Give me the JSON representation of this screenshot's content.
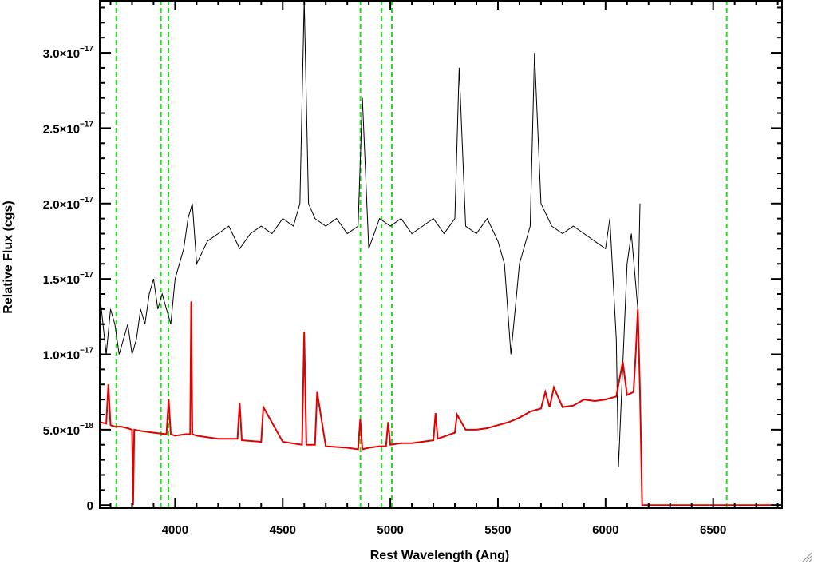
{
  "chart_data": {
    "type": "line",
    "xlabel": "Rest Wavelength (Ang)",
    "ylabel": "Relative Flux (cgs)",
    "xlim": [
      3650,
      6820
    ],
    "ylim": [
      -2e-19,
      3.35e-17
    ],
    "grid": false,
    "x_ticks": [
      {
        "value": 4000,
        "label": "4000"
      },
      {
        "value": 4500,
        "label": "4500"
      },
      {
        "value": 5000,
        "label": "5000"
      },
      {
        "value": 5500,
        "label": "5500"
      },
      {
        "value": 6000,
        "label": "6000"
      },
      {
        "value": 6500,
        "label": "6500"
      }
    ],
    "y_ticks": [
      {
        "value": 0,
        "mantissa": "0",
        "exponent": ""
      },
      {
        "value": 5e-18,
        "mantissa": "5.0×10",
        "exponent": "−18"
      },
      {
        "value": 1e-17,
        "mantissa": "1.0×10",
        "exponent": "−17"
      },
      {
        "value": 1.5e-17,
        "mantissa": "1.5×10",
        "exponent": "−17"
      },
      {
        "value": 2e-17,
        "mantissa": "2.0×10",
        "exponent": "−17"
      },
      {
        "value": 2.5e-17,
        "mantissa": "2.5×10",
        "exponent": "−17"
      },
      {
        "value": 3e-17,
        "mantissa": "3.0×10",
        "exponent": "−17"
      }
    ],
    "reference_lines": [
      3727,
      3934,
      3969,
      4861,
      4959,
      5007,
      6563
    ],
    "series": [
      {
        "color": "#000000",
        "x": [
          3650,
          3680,
          3700,
          3720,
          3740,
          3760,
          3780,
          3800,
          3820,
          3840,
          3860,
          3880,
          3900,
          3920,
          3940,
          3960,
          3980,
          4000,
          4020,
          4040,
          4060,
          4080,
          4100,
          4150,
          4200,
          4250,
          4300,
          4350,
          4400,
          4450,
          4500,
          4550,
          4580,
          4600,
          4620,
          4650,
          4700,
          4750,
          4800,
          4850,
          4870,
          4900,
          4950,
          5000,
          5050,
          5100,
          5150,
          5200,
          5250,
          5300,
          5320,
          5350,
          5400,
          5450,
          5500,
          5530,
          5560,
          5580,
          5600,
          5650,
          5670,
          5700,
          5750,
          5800,
          5850,
          5900,
          5950,
          6000,
          6020,
          6050,
          6060,
          6100,
          6120,
          6150,
          6160
        ],
        "y": [
          1.4e-17,
          1e-17,
          1.3e-17,
          1.2e-17,
          1e-17,
          1.1e-17,
          1.2e-17,
          1e-17,
          1.1e-17,
          1.3e-17,
          1.2e-17,
          1.4e-17,
          1.5e-17,
          1.3e-17,
          1.4e-17,
          1.3e-17,
          1.2e-17,
          1.5e-17,
          1.6e-17,
          1.7e-17,
          1.9e-17,
          2e-17,
          1.6e-17,
          1.75e-17,
          1.8e-17,
          1.85e-17,
          1.7e-17,
          1.8e-17,
          1.85e-17,
          1.8e-17,
          1.9e-17,
          1.85e-17,
          2e-17,
          3.35e-17,
          2e-17,
          1.9e-17,
          1.85e-17,
          1.9e-17,
          1.8e-17,
          1.85e-17,
          2.7e-17,
          1.7e-17,
          1.9e-17,
          1.85e-17,
          1.9e-17,
          1.8e-17,
          1.85e-17,
          1.9e-17,
          1.8e-17,
          1.9e-17,
          2.9e-17,
          1.85e-17,
          1.8e-17,
          1.9e-17,
          1.75e-17,
          1.6e-17,
          1e-17,
          1.3e-17,
          1.6e-17,
          1.85e-17,
          3e-17,
          2e-17,
          1.85e-17,
          1.8e-17,
          1.85e-17,
          1.8e-17,
          1.75e-17,
          1.7e-17,
          1.9e-17,
          1.1e-17,
          2.5e-18,
          1.6e-17,
          1.8e-17,
          1.3e-17,
          2e-17
        ]
      },
      {
        "color": "#e00000",
        "x": [
          3650,
          3680,
          3690,
          3700,
          3720,
          3750,
          3780,
          3800,
          3805,
          3810,
          3850,
          3900,
          3960,
          3970,
          3980,
          4000,
          4050,
          4070,
          4075,
          4080,
          4100,
          4200,
          4290,
          4300,
          4310,
          4400,
          4410,
          4500,
          4590,
          4600,
          4610,
          4650,
          4660,
          4700,
          4800,
          4850,
          4860,
          4870,
          4900,
          4950,
          4980,
          4990,
          5000,
          5050,
          5100,
          5200,
          5210,
          5220,
          5300,
          5310,
          5350,
          5400,
          5450,
          5500,
          5550,
          5600,
          5650,
          5700,
          5720,
          5740,
          5760,
          5800,
          5850,
          5900,
          5950,
          6000,
          6050,
          6080,
          6100,
          6130,
          6140,
          6150,
          6160,
          6170,
          6200,
          6300,
          6400,
          6500,
          6600,
          6700,
          6820
        ],
        "y": [
          5.5e-18,
          5.4e-18,
          8e-18,
          5.3e-18,
          5.2e-18,
          5.2e-18,
          5.1e-18,
          5e-18,
          0,
          5e-18,
          4.9e-18,
          4.8e-18,
          4.7e-18,
          7e-18,
          4.7e-18,
          4.6e-18,
          4.7e-18,
          4.7e-18,
          1.35e-17,
          4.7e-18,
          4.6e-18,
          4.4e-18,
          4.4e-18,
          6.8e-18,
          4.3e-18,
          4.2e-18,
          6.5e-18,
          4.2e-18,
          4e-18,
          1.15e-17,
          4e-18,
          4e-18,
          7.5e-18,
          3.9e-18,
          3.8e-18,
          3.7e-18,
          5.7e-18,
          3.7e-18,
          3.8e-18,
          3.9e-18,
          3.9e-18,
          5.5e-18,
          4e-18,
          4.1e-18,
          4.1e-18,
          4.3e-18,
          6.1e-18,
          4.4e-18,
          4.8e-18,
          6e-18,
          5e-18,
          5e-18,
          5.1e-18,
          5.3e-18,
          5.5e-18,
          5.8e-18,
          6.2e-18,
          6.4e-18,
          7.5e-18,
          6.5e-18,
          7.8e-18,
          6.5e-18,
          6.6e-18,
          7e-18,
          6.9e-18,
          7e-18,
          7.2e-18,
          9.5e-18,
          7.3e-18,
          7.5e-18,
          1e-17,
          1.3e-17,
          7.5e-18,
          0,
          0,
          0,
          0,
          0,
          0,
          0,
          0
        ]
      }
    ]
  }
}
